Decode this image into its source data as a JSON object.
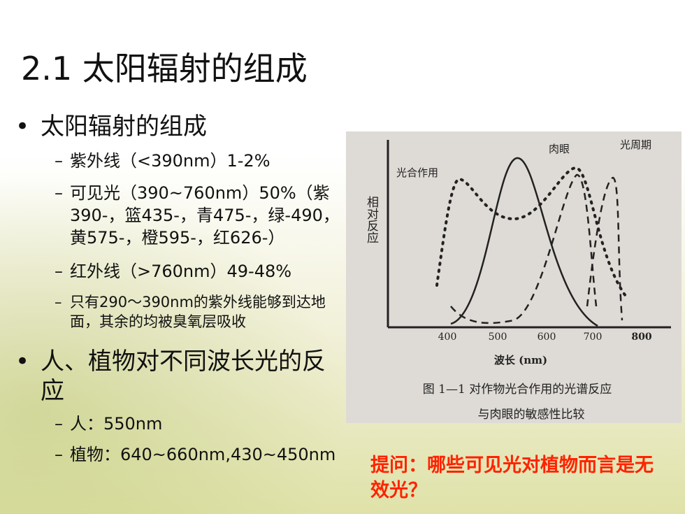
{
  "title": "2.1 太阳辐射的组成",
  "bullets": [
    {
      "text": "太阳辐射的组成",
      "items": [
        "紫外线（<390nm）1-2%",
        "可见光（390~760nm）50%（紫390-，篮435-，青475-，绿-490，黄575-，橙595-，红626-）",
        "红外线（>760nm）49-48%",
        "只有290～390nm的紫外线能够到达地面，其余的均被臭氧层吸收"
      ]
    },
    {
      "text": "人、植物对不同波长光的反应",
      "items": [
        "人：550nm",
        "植物：640~660nm,430~450nm"
      ]
    }
  ],
  "figure": {
    "labels": [
      "肉眼",
      "光周期",
      "光合作用"
    ],
    "y_label": "相对反应",
    "x_ticks": [
      "400",
      "500",
      "600",
      "700",
      "800"
    ],
    "x_label": "波长 (nm)",
    "caption": [
      "图 1—1  对作物光合作用的光谱反应",
      "与肉眼的敏感性比较"
    ]
  },
  "question": "提问：哪些可见光对植物而言是无效光？"
}
